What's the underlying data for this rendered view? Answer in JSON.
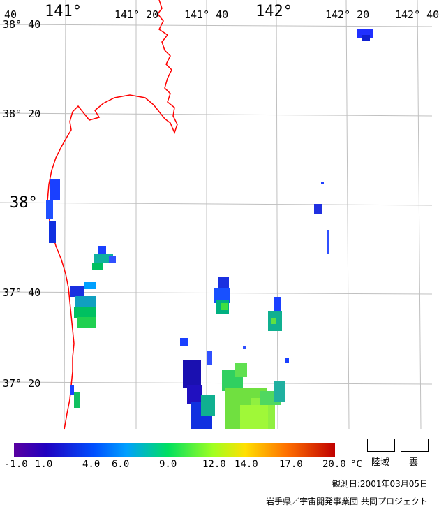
{
  "map": {
    "longitude_labels": [
      "141°",
      "141° 20",
      "141° 40",
      "142°",
      "142° 20",
      "142° 40"
    ],
    "latitude_labels": [
      "38° 40",
      "38° 20",
      "38°",
      "37° 40",
      "37° 20"
    ],
    "corner_label": "40"
  },
  "colorbar": {
    "unit": "°C",
    "ticks": [
      "-1.0",
      "1.0",
      "4.0",
      "6.0",
      "9.0",
      "12.0",
      "14.0",
      "17.0",
      "20.0"
    ],
    "colors": [
      "#5a00a0",
      "#2000c0",
      "#0050ff",
      "#00a0ff",
      "#00e060",
      "#a0ff20",
      "#ffe000",
      "#ff7000",
      "#c00000"
    ]
  },
  "legend": {
    "land": "陸域",
    "cloud": "雲"
  },
  "footer": {
    "observation": "観測日:2001年03月05日",
    "credit": "岩手県／宇宙開発事業団 共同プロジェクト"
  },
  "colors": {
    "coastline": "#ff0000",
    "grid": "#c0c0c0"
  }
}
